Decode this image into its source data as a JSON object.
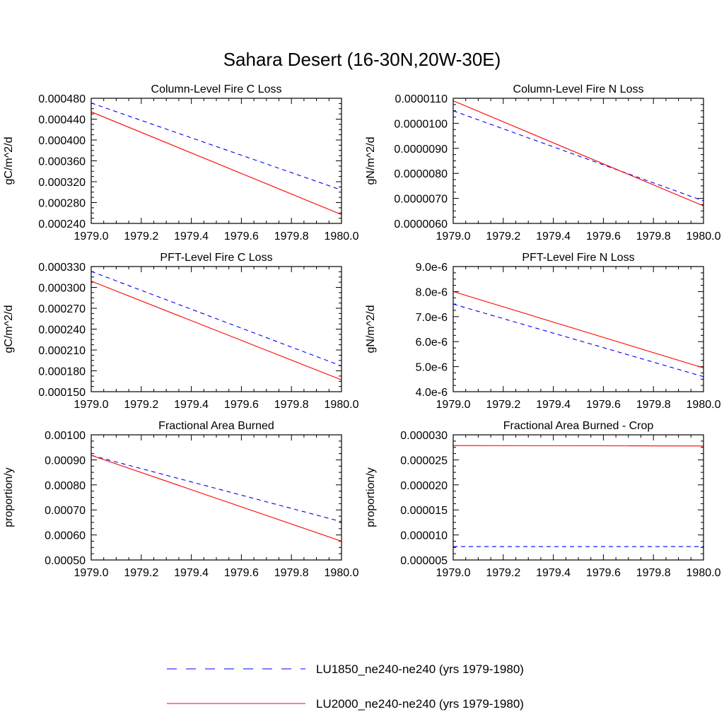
{
  "figure": {
    "title": "Sahara Desert (16-30N,20W-30E)"
  },
  "legend": {
    "entries": [
      {
        "label": "LU1850_ne240-ne240 (yrs 1979-1980)",
        "color": "#0000ff",
        "dashed": true
      },
      {
        "label": "LU2000_ne240-ne240 (yrs 1979-1980)",
        "color": "#ff0000",
        "dashed": false
      }
    ]
  },
  "chart_data": [
    {
      "type": "line",
      "title": "Column-Level Fire C Loss",
      "ylabel": "gC/m^2/d",
      "xlim": [
        1979.0,
        1980.0
      ],
      "ylim": [
        0.00024,
        0.00048
      ],
      "xticks": [
        "1979.0",
        "1979.2",
        "1979.4",
        "1979.6",
        "1979.8",
        "1980.0"
      ],
      "yticks": [
        "0.000240",
        "0.000280",
        "0.000320",
        "0.000360",
        "0.000400",
        "0.000440",
        "0.000480"
      ],
      "x": [
        1979.0,
        1980.0
      ],
      "series": [
        {
          "name": "LU1850_ne240-ne240 (yrs 1979-1980)",
          "values": [
            0.000471,
            0.000304
          ]
        },
        {
          "name": "LU2000_ne240-ne240 (yrs 1979-1980)",
          "values": [
            0.000454,
            0.000257
          ]
        }
      ]
    },
    {
      "type": "line",
      "title": "Column-Level Fire N Loss",
      "ylabel": "gN/m^2/d",
      "xlim": [
        1979.0,
        1980.0
      ],
      "ylim": [
        6e-06,
        1.1e-05
      ],
      "xticks": [
        "1979.0",
        "1979.2",
        "1979.4",
        "1979.6",
        "1979.8",
        "1980.0"
      ],
      "yticks": [
        "0.0000060",
        "0.0000070",
        "0.0000080",
        "0.0000090",
        "0.0000100",
        "0.0000110"
      ],
      "x": [
        1979.0,
        1980.0
      ],
      "series": [
        {
          "name": "LU1850_ne240-ne240 (yrs 1979-1980)",
          "values": [
            1.05e-05,
            6.9e-06
          ]
        },
        {
          "name": "LU2000_ne240-ne240 (yrs 1979-1980)",
          "values": [
            1.09e-05,
            6.7e-06
          ]
        }
      ]
    },
    {
      "type": "line",
      "title": "PFT-Level Fire C Loss",
      "ylabel": "gC/m^2/d",
      "xlim": [
        1979.0,
        1980.0
      ],
      "ylim": [
        0.00015,
        0.00033
      ],
      "xticks": [
        "1979.0",
        "1979.2",
        "1979.4",
        "1979.6",
        "1979.8",
        "1980.0"
      ],
      "yticks": [
        "0.000150",
        "0.000180",
        "0.000210",
        "0.000240",
        "0.000270",
        "0.000300",
        "0.000330"
      ],
      "x": [
        1979.0,
        1980.0
      ],
      "series": [
        {
          "name": "LU1850_ne240-ne240 (yrs 1979-1980)",
          "values": [
            0.000323,
            0.000187
          ]
        },
        {
          "name": "LU2000_ne240-ne240 (yrs 1979-1980)",
          "values": [
            0.000309,
            0.000167
          ]
        }
      ]
    },
    {
      "type": "line",
      "title": "PFT-Level Fire N Loss",
      "ylabel": "gN/m^2/d",
      "xlim": [
        1979.0,
        1980.0
      ],
      "ylim": [
        4e-06,
        9e-06
      ],
      "xticks": [
        "1979.0",
        "1979.2",
        "1979.4",
        "1979.6",
        "1979.8",
        "1980.0"
      ],
      "yticks": [
        "4.0e-6",
        "5.0e-6",
        "6.0e-6",
        "7.0e-6",
        "8.0e-6",
        "9.0e-6"
      ],
      "x": [
        1979.0,
        1980.0
      ],
      "series": [
        {
          "name": "LU1850_ne240-ne240 (yrs 1979-1980)",
          "values": [
            7.5e-06,
            4.6e-06
          ]
        },
        {
          "name": "LU2000_ne240-ne240 (yrs 1979-1980)",
          "values": [
            8e-06,
            4.95e-06
          ]
        }
      ]
    },
    {
      "type": "line",
      "title": "Fractional Area Burned",
      "ylabel": "proportion/y",
      "xlim": [
        1979.0,
        1980.0
      ],
      "ylim": [
        0.0005,
        0.001
      ],
      "xticks": [
        "1979.0",
        "1979.2",
        "1979.4",
        "1979.6",
        "1979.8",
        "1980.0"
      ],
      "yticks": [
        "0.00050",
        "0.00060",
        "0.00070",
        "0.00080",
        "0.00090",
        "0.00100"
      ],
      "x": [
        1979.0,
        1980.0
      ],
      "series": [
        {
          "name": "LU1850_ne240-ne240 (yrs 1979-1980)",
          "values": [
            0.000918,
            0.000653
          ]
        },
        {
          "name": "LU2000_ne240-ne240 (yrs 1979-1980)",
          "values": [
            0.000918,
            0.000575
          ]
        }
      ]
    },
    {
      "type": "line",
      "title": "Fractional Area Burned - Crop",
      "ylabel": "proportion/y",
      "xlim": [
        1979.0,
        1980.0
      ],
      "ylim": [
        4e-06,
        3.2e-05
      ],
      "xticks": [
        "1979.0",
        "1979.2",
        "1979.4",
        "1979.6",
        "1979.8",
        "1980.0"
      ],
      "yticks": [
        "0.000005",
        "0.000010",
        "0.000015",
        "0.000020",
        "0.000025",
        "0.000030"
      ],
      "x": [
        1979.0,
        1980.0
      ],
      "series": [
        {
          "name": "LU1850_ne240-ne240 (yrs 1979-1980)",
          "values": [
            7e-06,
            7e-06
          ]
        },
        {
          "name": "LU2000_ne240-ne240 (yrs 1979-1980)",
          "values": [
            2.96e-05,
            2.95e-05
          ]
        }
      ]
    }
  ]
}
